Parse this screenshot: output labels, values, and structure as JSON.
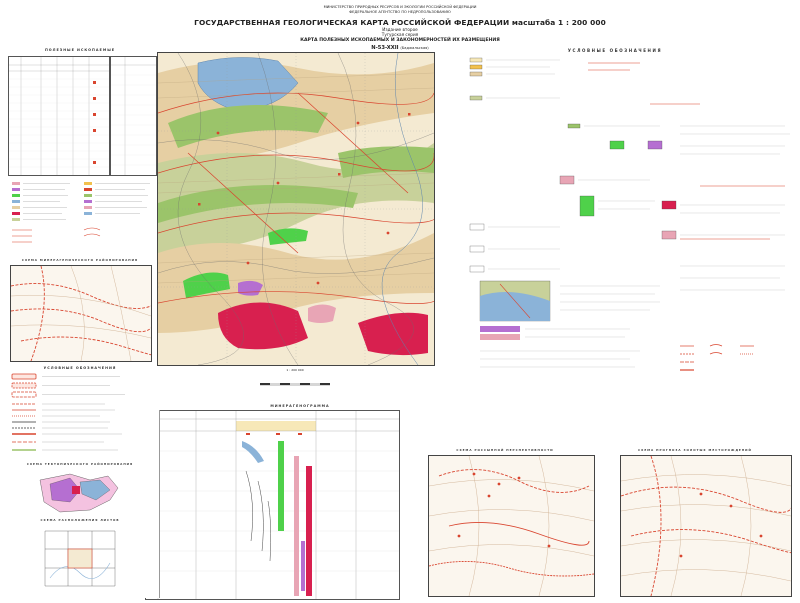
{
  "header": {
    "ministry_line1": "МИНИСТЕРСТВО ПРИРОДНЫХ РЕСУРСОВ И ЭКОЛОГИИ РОССИЙСКОЙ ФЕДЕРАЦИИ",
    "ministry_line2": "ФЕДЕРАЛЬНОЕ АГЕНТСТВО ПО НЕДРОПОЛЬЗОВАНИЮ",
    "title": "ГОСУДАРСТВЕННАЯ ГЕОЛОГИЧЕСКАЯ КАРТА РОССИЙСКОЙ ФЕДЕРАЦИИ масштаба 1 : 200 000",
    "edition": "Издание второе",
    "series": "Тугурская серия",
    "map_title": "КАРТА ПОЛЕЗНЫХ ИСКОПАЕМЫХ И ЗАКОНОМЕРНОСТЕЙ ИХ РАЗМЕЩЕНИЯ",
    "sheet": "N-53-XXII",
    "sheet_name": "(Баджальская)"
  },
  "sections": {
    "minerals": "ПОЛЕЗНЫЕ ИСКОПАЕМЫЕ",
    "legend": "УСЛОВНЫЕ ОБОЗНАЧЕНИЯ",
    "legend_left": "УСЛОВНЫЕ ОБОЗНАЧЕНИЯ",
    "minerageny": "МИНЕРАГЕНОГРАММА",
    "scheme_minerageny": "СХЕМА МИНЕРАГЕНИЧЕСКОГО РАЙОНИРОВАНИЯ",
    "scheme_tectonic": "СХЕМА ТЕКТОНИЧЕСКОГО РАЙОНИРОВАНИЯ",
    "scheme_placer": "СХЕМА РОССЫПНОЙ ПЕРСПЕКТИВНОСТИ",
    "scheme_conclusion": "СХЕМА ПРОГНОЗА ЗОЛОТЫХ МЕСТОРОЖДЕНИЙ",
    "scheme_location": "СХЕМА РАСПОЛОЖЕНИЯ ЛИСТОВ"
  },
  "scale": {
    "label": "1 : 200 000"
  },
  "colors": {
    "map_bg": "#f4ead2",
    "tan": "#e6cfa3",
    "olive": "#c8d19a",
    "green": "#9bc46a",
    "bright_green": "#4fd14a",
    "blue": "#8bb3d8",
    "pink": "#e8a5b5",
    "magenta": "#d8204f",
    "purple": "#b56fd1",
    "red_line": "#d9452f"
  }
}
